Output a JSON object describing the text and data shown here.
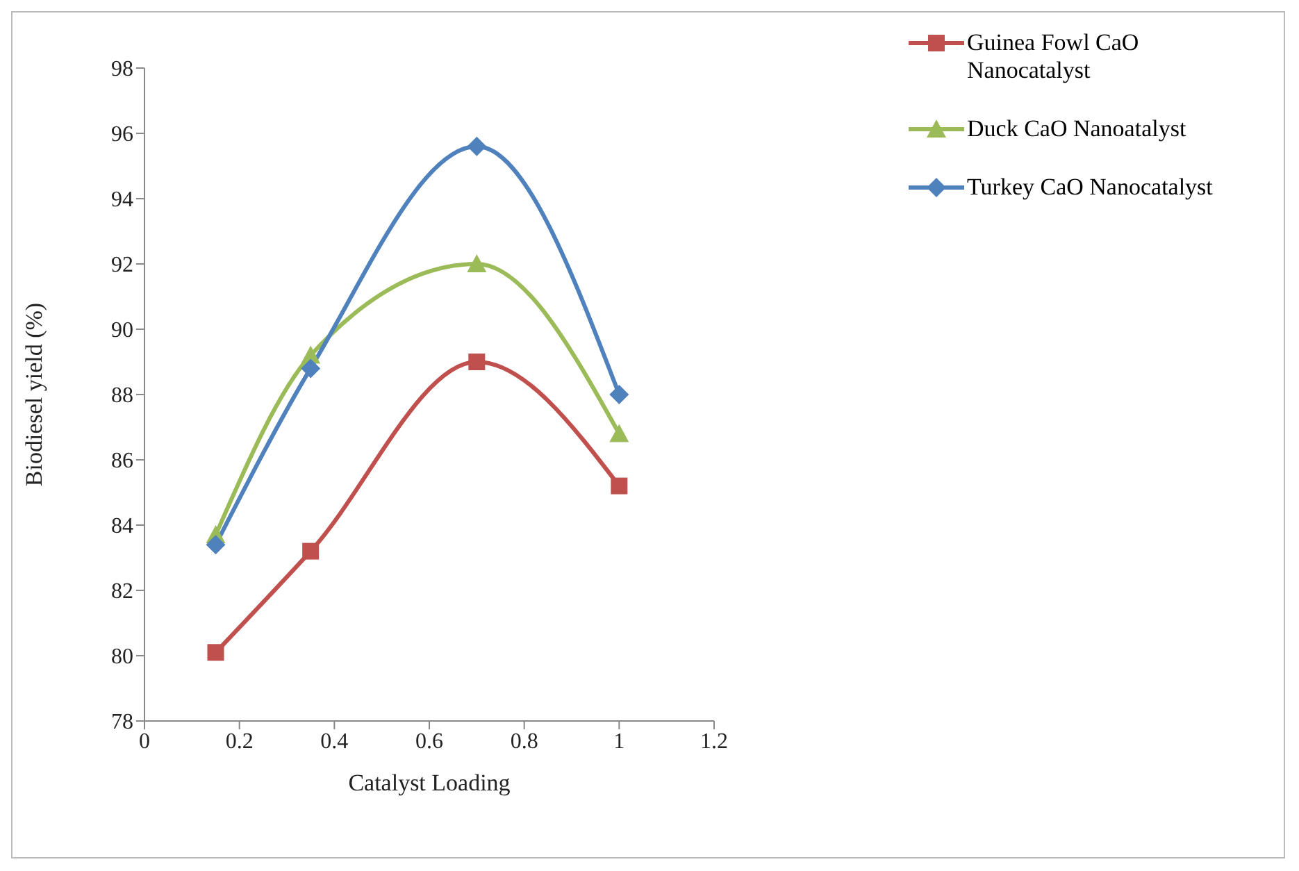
{
  "chart_data": {
    "type": "line",
    "xlabel": "Catalyst Loading",
    "ylabel": "Biodiesel yield (%)",
    "x": [
      0.15,
      0.35,
      0.7,
      1
    ],
    "series": [
      {
        "name": "Guinea Fowl CaO Nanocatalyst",
        "color": "#c0504d",
        "marker": "square",
        "values": [
          80.1,
          83.2,
          89.0,
          85.2
        ]
      },
      {
        "name": "Duck CaO Nanoatalyst",
        "color": "#9bbb59",
        "marker": "triangle",
        "values": [
          83.7,
          89.2,
          92.0,
          86.8
        ]
      },
      {
        "name": "Turkey CaO Nanocatalyst",
        "color": "#4f81bd",
        "marker": "diamond",
        "values": [
          83.4,
          88.8,
          95.6,
          88.0
        ]
      }
    ],
    "xlim": [
      0,
      1.2
    ],
    "xticks": [
      0,
      0.2,
      0.4,
      0.6,
      0.8,
      1,
      1.2
    ],
    "ylim": [
      78,
      98
    ],
    "yticks": [
      78,
      80,
      82,
      84,
      86,
      88,
      90,
      92,
      94,
      96,
      98
    ],
    "grid": false,
    "legend": "top right",
    "line_style": "solid"
  }
}
